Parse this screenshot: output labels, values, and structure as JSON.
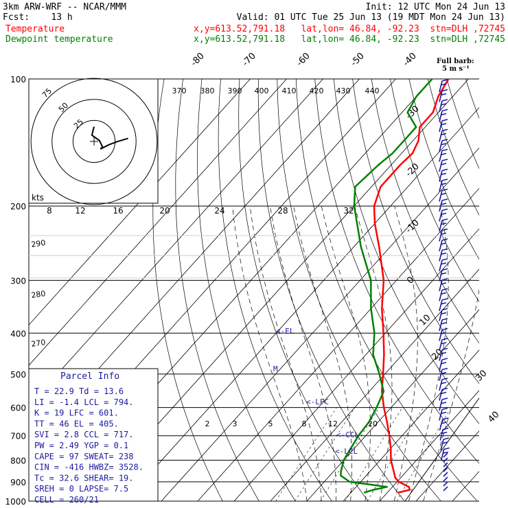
{
  "header": {
    "model": "3km ARW-WRF -- NCAR/MMM",
    "init": "Init: 12 UTC Mon 24 Jun 13",
    "fcst": "Fcst:    13 h",
    "valid": "Valid: 01 UTC Tue 25 Jun 13 (19 MDT Mon 24 Jun 13)",
    "temp_label": "Temperature",
    "temp_info": "x,y=613.52,791.18   lat,lon= 46.84, -92.23  stn=DLH ,72745",
    "dew_label": "Dewpoint temperature",
    "dew_info": "x,y=613.52,791.18   lat,lon= 46.84, -92.23  stn=DLH ,72745"
  },
  "colors": {
    "temperature": "#ff0000",
    "dewpoint": "#008000",
    "hodograph": "#000000",
    "barbs": "#1a1aa0",
    "parcel_text": "#1a1aa0",
    "grid": "#000000"
  },
  "legend_barb": "Full barb:\n5 m s⁻¹",
  "parcel_info": {
    "title": "Parcel Info",
    "rows": [
      "T  =   22.9  Td =  13.6",
      "LI =   -1.4  LCL =  794.",
      "K  =     19  LFC =  601.",
      "TT =     46  EL  =  405.",
      "SVI =   2.8  CCL =  717.",
      "PW =   2.49  YGP =   0.1",
      "CAPE =   97  SWEAT=  238",
      "CIN =  -416  HWBZ= 3528.",
      "Tc =   32.6  SHEAR=  19.",
      "SREH =    0  LAPSE=  7.5",
      "CELL = 260/21"
    ]
  },
  "level_markers": [
    "<-EL",
    "<-LFC",
    "<-CCL",
    "<-LCL",
    "M"
  ],
  "hodograph": {
    "units_label": "kts",
    "ring_labels": [
      "25",
      "50",
      "75"
    ],
    "speed_labels": [
      "8",
      "12",
      "16",
      "20",
      "24",
      "28",
      "32"
    ]
  },
  "theta_labels": [
    "370",
    "380",
    "390",
    "400",
    "410",
    "420",
    "430",
    "440"
  ],
  "theta_left_labels": [
    "290",
    "280",
    "270"
  ],
  "mixing_ratio_labels": [
    "2",
    "3",
    "5",
    "8",
    "12",
    "20"
  ],
  "chart_data": {
    "type": "line",
    "title": "",
    "xlabel": "",
    "ylabel": "",
    "y_scale": "log-pressure (inverted)",
    "pressure_ticks": [
      100,
      200,
      300,
      400,
      500,
      600,
      700,
      800,
      900,
      1000
    ],
    "isotherm_labels": [
      -80,
      -70,
      -60,
      -50,
      -40,
      -30,
      -20,
      -10,
      0,
      10,
      20,
      30,
      40
    ],
    "series": [
      {
        "name": "Temperature",
        "pressure_hPa": [
          955,
          940,
          925,
          900,
          880,
          850,
          800,
          750,
          700,
          650,
          600,
          550,
          500,
          450,
          400,
          350,
          300,
          250,
          220,
          200,
          180,
          160,
          150,
          140,
          130,
          120,
          110,
          100
        ],
        "temp_C": [
          22.9,
          25.5,
          24.5,
          20.5,
          18.5,
          16.5,
          13,
          10,
          6.5,
          2.5,
          -2,
          -6.5,
          -10.5,
          -15,
          -20.5,
          -27,
          -33.5,
          -43,
          -50,
          -54.5,
          -57.5,
          -57.5,
          -57,
          -58.5,
          -61.5,
          -61.5,
          -64,
          -65.5
        ]
      },
      {
        "name": "Dewpoint temperature",
        "pressure_hPa": [
          955,
          940,
          925,
          915,
          900,
          870,
          850,
          800,
          750,
          700,
          650,
          600,
          550,
          500,
          450,
          400,
          350,
          300,
          250,
          200,
          180,
          160,
          150,
          140,
          130,
          120,
          110,
          100
        ],
        "temp_C": [
          13.6,
          15.5,
          18.5,
          14,
          7,
          3,
          2,
          0,
          -1,
          -2,
          -2.5,
          -4,
          -6,
          -11.5,
          -18,
          -23,
          -30,
          -37,
          -48,
          -60,
          -64.5,
          -63.5,
          -62.5,
          -62.5,
          -62.5,
          -68.5,
          -70,
          -70
        ]
      }
    ],
    "hodograph_uv_kts": [
      [
        0,
        10
      ],
      [
        -1,
        6
      ],
      [
        -2,
        2
      ],
      [
        5,
        -3
      ],
      [
        8,
        -9
      ],
      [
        6,
        -11
      ],
      [
        14,
        -7
      ],
      [
        22,
        -4
      ],
      [
        32,
        -1
      ]
    ]
  }
}
